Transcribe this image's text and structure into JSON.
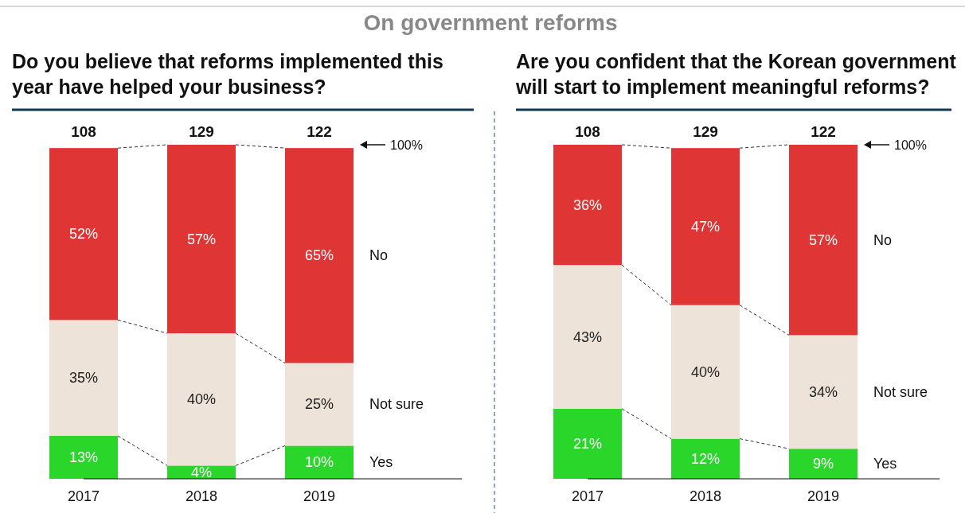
{
  "chart_data": [
    {
      "type": "bar",
      "title": "On government reforms",
      "subtitle": "Do you believe that reforms implemented this year have helped your business?",
      "categories": [
        "2017",
        "2018",
        "2019"
      ],
      "stacked": true,
      "annotations": [
        "108",
        "129",
        "122",
        "100%"
      ],
      "series": [
        {
          "name": "Yes",
          "color": "#2ad62a",
          "values": [
            13,
            4,
            10
          ],
          "value_labels": [
            "13%",
            "4%",
            "10%"
          ]
        },
        {
          "name": "Not sure",
          "color": "#ede3d8",
          "values": [
            35,
            40,
            25
          ],
          "value_labels": [
            "35%",
            "40%",
            "25%"
          ]
        },
        {
          "name": "No",
          "color": "#e03535",
          "values": [
            52,
            57,
            65
          ],
          "value_labels": [
            "52%",
            "57%",
            "65%"
          ]
        }
      ]
    },
    {
      "type": "bar",
      "subtitle": "Are you confident that the Korean government will start to implement meaningful reforms?",
      "categories": [
        "2017",
        "2018",
        "2019"
      ],
      "stacked": true,
      "annotations": [
        "108",
        "129",
        "122",
        "100%"
      ],
      "series": [
        {
          "name": "Yes",
          "color": "#2ad62a",
          "values": [
            21,
            12,
            9
          ],
          "value_labels": [
            "21%",
            "12%",
            "9%"
          ]
        },
        {
          "name": "Not sure",
          "color": "#ede3d8",
          "values": [
            43,
            40,
            34
          ],
          "value_labels": [
            "43%",
            "40%",
            "34%"
          ]
        },
        {
          "name": "No",
          "color": "#e03535",
          "values": [
            36,
            47,
            57
          ],
          "value_labels": [
            "36%",
            "47%",
            "57%"
          ]
        }
      ]
    }
  ]
}
